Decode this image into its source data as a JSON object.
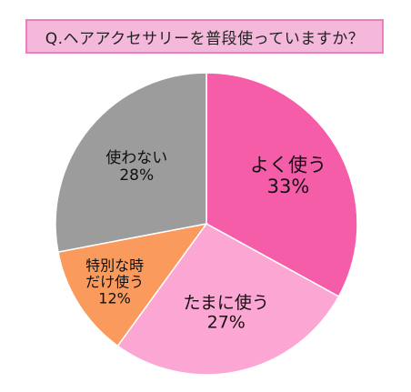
{
  "question": "Q.ヘアアクセサリーを普段使っていますか？",
  "chart_data": {
    "type": "pie",
    "title": "Q.ヘアアクセサリーを普段使っていますか？",
    "slices": [
      {
        "label": "よく使う",
        "value": 33,
        "value_label": "33%",
        "color": "#f55da9"
      },
      {
        "label": "たまに使う",
        "value": 27,
        "value_label": "27%",
        "color": "#fca7d3"
      },
      {
        "label": "特別な時\nだけ使う",
        "value": 12,
        "value_label": "12%",
        "color": "#fa9a5c"
      },
      {
        "label": "使わない",
        "value": 28,
        "value_label": "28%",
        "color": "#9c9c9c"
      }
    ],
    "start_angle_deg": 0,
    "direction": "clockwise",
    "stroke_color": "#ffffff"
  }
}
